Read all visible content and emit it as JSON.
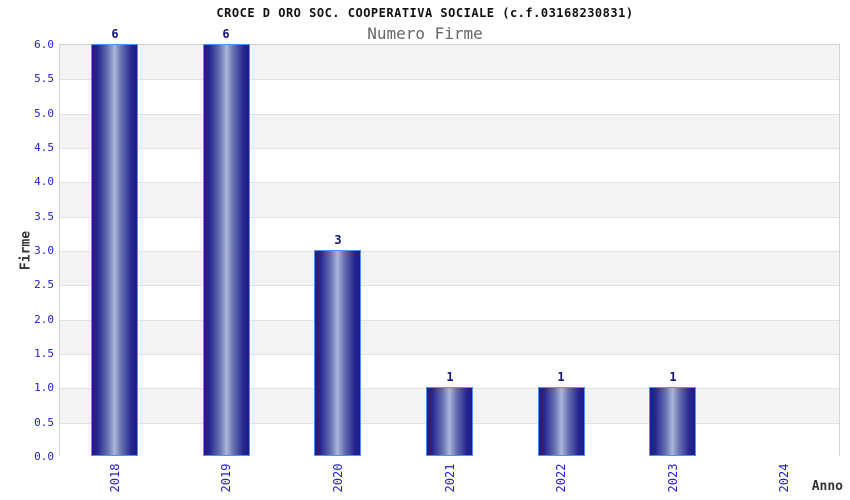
{
  "header": {
    "title": "CROCE D ORO SOC. COOPERATIVA SOCIALE (c.f.03168230831)",
    "subtitle": "Numero Firme"
  },
  "chart_data": {
    "type": "bar",
    "title": "CROCE D ORO SOC. COOPERATIVA SOCIALE (c.f.03168230831)",
    "subtitle": "Numero Firme",
    "xlabel": "Anno",
    "ylabel": "Firme",
    "categories": [
      "2018",
      "2019",
      "2020",
      "2021",
      "2022",
      "2023",
      "2024"
    ],
    "values": [
      6,
      6,
      3,
      1,
      1,
      1,
      0
    ],
    "bar_labels": [
      "6",
      "6",
      "3",
      "1",
      "1",
      "1",
      ""
    ],
    "ylim": [
      0,
      6
    ],
    "ytick_step": 0.5,
    "yticks": [
      "6.0",
      "5.5",
      "5.0",
      "4.5",
      "4.0",
      "3.5",
      "3.0",
      "2.5",
      "2.0",
      "1.5",
      "1.0",
      "0.5",
      "0.0"
    ],
    "grid": true,
    "legend_position": "none",
    "band_pattern": "alternating horizontal stripes, gray topmost"
  },
  "colors": {
    "title": "#111111",
    "subtitle": "#666666",
    "tick_label": "#2222cc",
    "value_label": "#14147a",
    "axis_title": "#333333",
    "band_gray": "#f3f3f3",
    "band_white": "#ffffff",
    "gridline": "#e2e2e2",
    "plot_border": "#d4d4d4",
    "bar_dark": "#1d1d88",
    "bar_mid": "#26268f",
    "bar_light": "#aab6da",
    "bar_border": "#4f94f0"
  }
}
